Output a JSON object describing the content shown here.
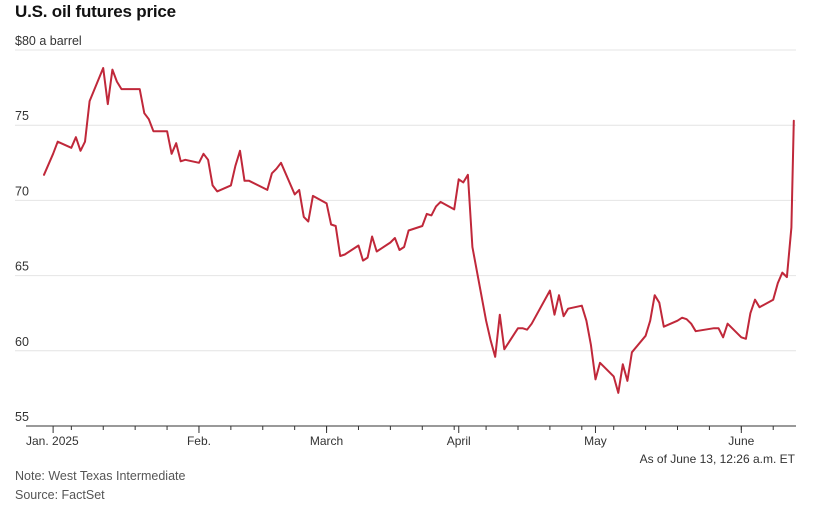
{
  "title": "U.S. oil futures price",
  "as_of": "As of June 13, 12:26 a.m. ET",
  "note": "Note: West Texas Intermediate",
  "source": "Source: FactSet",
  "colors": {
    "line": "#c0283a",
    "grid": "#e4e4e4",
    "axis": "#333333"
  },
  "chart_data": {
    "type": "line",
    "title": "U.S. oil futures price",
    "ylabel": "$80 a barrel",
    "ylim": [
      55,
      80
    ],
    "y_ticks": [
      {
        "value": 80,
        "label": "$80 a barrel"
      },
      {
        "value": 75,
        "label": "75"
      },
      {
        "value": 70,
        "label": "70"
      },
      {
        "value": 65,
        "label": "65"
      },
      {
        "value": 60,
        "label": "60"
      },
      {
        "value": 55,
        "label": "55"
      }
    ],
    "x_ticks": [
      {
        "date": "2025-01-02",
        "label": "Jan. 2025"
      },
      {
        "date": "2025-02-03",
        "label": "Feb."
      },
      {
        "date": "2025-03-03",
        "label": "March"
      },
      {
        "date": "2025-04-01",
        "label": "April"
      },
      {
        "date": "2025-05-01",
        "label": "May"
      },
      {
        "date": "2025-06-02",
        "label": "June"
      }
    ],
    "xlim": [
      "2024-12-31",
      "2025-06-13"
    ],
    "grid": true,
    "series": [
      {
        "points": [
          [
            "2024-12-31",
            71.7
          ],
          [
            "2025-01-02",
            73.1
          ],
          [
            "2025-01-03",
            73.9
          ],
          [
            "2025-01-06",
            73.5
          ],
          [
            "2025-01-07",
            74.2
          ],
          [
            "2025-01-08",
            73.3
          ],
          [
            "2025-01-09",
            73.9
          ],
          [
            "2025-01-10",
            76.6
          ],
          [
            "2025-01-13",
            78.8
          ],
          [
            "2025-01-14",
            76.4
          ],
          [
            "2025-01-15",
            78.7
          ],
          [
            "2025-01-16",
            77.9
          ],
          [
            "2025-01-17",
            77.4
          ],
          [
            "2025-01-21",
            77.4
          ],
          [
            "2025-01-22",
            75.8
          ],
          [
            "2025-01-23",
            75.4
          ],
          [
            "2025-01-24",
            74.6
          ],
          [
            "2025-01-27",
            74.6
          ],
          [
            "2025-01-28",
            73.1
          ],
          [
            "2025-01-29",
            73.8
          ],
          [
            "2025-01-30",
            72.6
          ],
          [
            "2025-01-31",
            72.7
          ],
          [
            "2025-02-03",
            72.5
          ],
          [
            "2025-02-04",
            73.1
          ],
          [
            "2025-02-05",
            72.7
          ],
          [
            "2025-02-06",
            71.0
          ],
          [
            "2025-02-07",
            70.6
          ],
          [
            "2025-02-10",
            71.0
          ],
          [
            "2025-02-11",
            72.3
          ],
          [
            "2025-02-12",
            73.3
          ],
          [
            "2025-02-13",
            71.3
          ],
          [
            "2025-02-14",
            71.3
          ],
          [
            "2025-02-18",
            70.7
          ],
          [
            "2025-02-19",
            71.8
          ],
          [
            "2025-02-20",
            72.1
          ],
          [
            "2025-02-21",
            72.5
          ],
          [
            "2025-02-24",
            70.4
          ],
          [
            "2025-02-25",
            70.7
          ],
          [
            "2025-02-26",
            68.9
          ],
          [
            "2025-02-27",
            68.6
          ],
          [
            "2025-02-28",
            70.3
          ],
          [
            "2025-03-03",
            69.8
          ],
          [
            "2025-03-04",
            68.4
          ],
          [
            "2025-03-05",
            68.3
          ],
          [
            "2025-03-06",
            66.3
          ],
          [
            "2025-03-07",
            66.4
          ],
          [
            "2025-03-10",
            67.0
          ],
          [
            "2025-03-11",
            66.0
          ],
          [
            "2025-03-12",
            66.2
          ],
          [
            "2025-03-13",
            67.6
          ],
          [
            "2025-03-14",
            66.6
          ],
          [
            "2025-03-17",
            67.2
          ],
          [
            "2025-03-18",
            67.5
          ],
          [
            "2025-03-19",
            66.7
          ],
          [
            "2025-03-20",
            66.9
          ],
          [
            "2025-03-21",
            68.0
          ],
          [
            "2025-03-24",
            68.3
          ],
          [
            "2025-03-25",
            69.1
          ],
          [
            "2025-03-26",
            69.0
          ],
          [
            "2025-03-27",
            69.6
          ],
          [
            "2025-03-28",
            69.9
          ],
          [
            "2025-03-31",
            69.4
          ],
          [
            "2025-04-01",
            71.4
          ],
          [
            "2025-04-02",
            71.2
          ],
          [
            "2025-04-03",
            71.7
          ],
          [
            "2025-04-04",
            66.9
          ],
          [
            "2025-04-07",
            62.0
          ],
          [
            "2025-04-08",
            60.7
          ],
          [
            "2025-04-09",
            59.6
          ],
          [
            "2025-04-10",
            62.4
          ],
          [
            "2025-04-11",
            60.1
          ],
          [
            "2025-04-14",
            61.5
          ],
          [
            "2025-04-15",
            61.5
          ],
          [
            "2025-04-16",
            61.4
          ],
          [
            "2025-04-17",
            61.8
          ],
          [
            "2025-04-21",
            64.0
          ],
          [
            "2025-04-22",
            62.4
          ],
          [
            "2025-04-23",
            63.7
          ],
          [
            "2025-04-24",
            62.3
          ],
          [
            "2025-04-25",
            62.8
          ],
          [
            "2025-04-28",
            63.0
          ],
          [
            "2025-04-29",
            62.0
          ],
          [
            "2025-04-30",
            60.4
          ],
          [
            "2025-05-01",
            58.1
          ],
          [
            "2025-05-02",
            59.2
          ],
          [
            "2025-05-05",
            58.3
          ],
          [
            "2025-05-06",
            57.2
          ],
          [
            "2025-05-07",
            59.1
          ],
          [
            "2025-05-08",
            58.0
          ],
          [
            "2025-05-09",
            59.9
          ],
          [
            "2025-05-12",
            61.0
          ],
          [
            "2025-05-13",
            62.0
          ],
          [
            "2025-05-14",
            63.7
          ],
          [
            "2025-05-15",
            63.2
          ],
          [
            "2025-05-16",
            61.6
          ],
          [
            "2025-05-19",
            62.0
          ],
          [
            "2025-05-20",
            62.2
          ],
          [
            "2025-05-21",
            62.1
          ],
          [
            "2025-05-22",
            61.8
          ],
          [
            "2025-05-23",
            61.3
          ],
          [
            "2025-05-27",
            61.5
          ],
          [
            "2025-05-28",
            61.5
          ],
          [
            "2025-05-29",
            60.9
          ],
          [
            "2025-05-30",
            61.8
          ],
          [
            "2025-06-02",
            60.9
          ],
          [
            "2025-06-03",
            60.8
          ],
          [
            "2025-06-04",
            62.5
          ],
          [
            "2025-06-05",
            63.4
          ],
          [
            "2025-06-06",
            62.9
          ],
          [
            "2025-06-09",
            63.4
          ],
          [
            "2025-06-10",
            64.5
          ],
          [
            "2025-06-11",
            65.2
          ],
          [
            "2025-06-12",
            64.9
          ],
          [
            "2025-06-13",
            68.2
          ],
          [
            "2025-06-13T12:26",
            75.3
          ]
        ]
      }
    ]
  }
}
